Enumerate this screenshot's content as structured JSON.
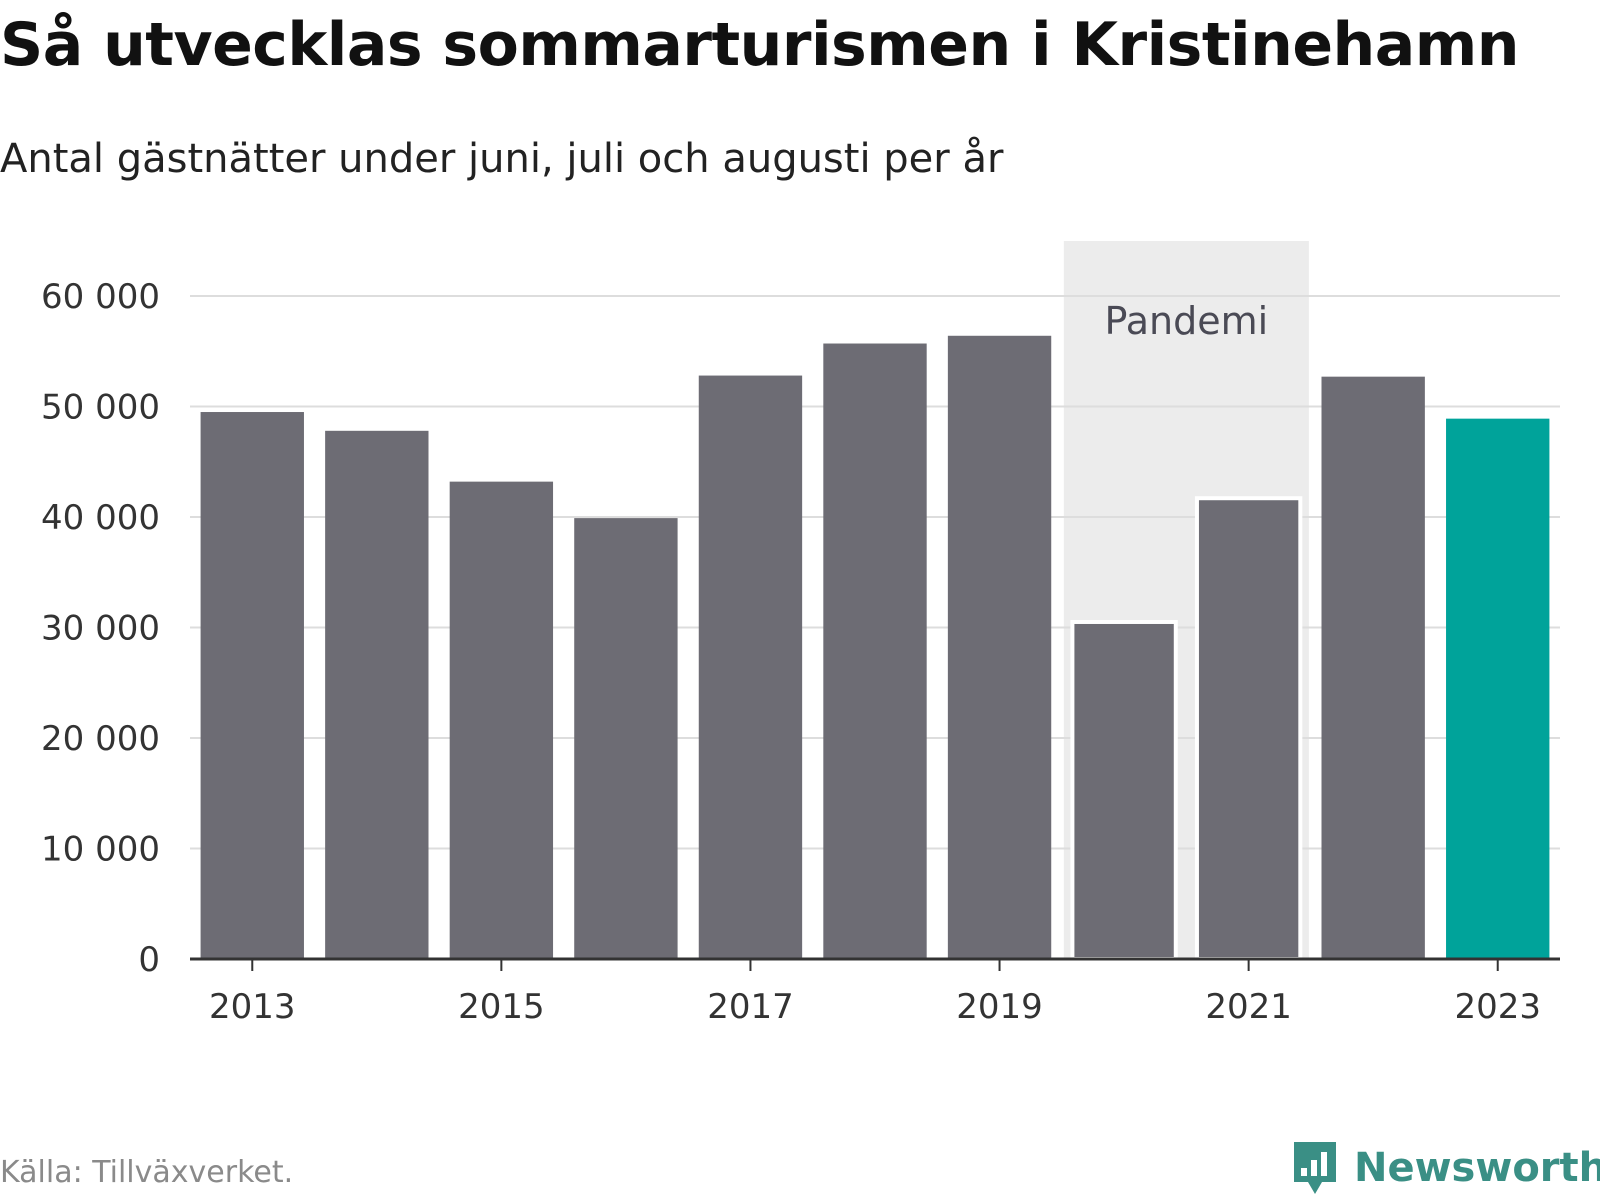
{
  "title": "Så utvecklas sommarturismen i Kristinehamn",
  "subtitle": "Antal gästnätter under juni, juli och augusti per år",
  "source": "Källa: Tillväxverket.",
  "brand": {
    "name": "Newsworthy",
    "icon": "bar-chart-speech-bubble-icon"
  },
  "colors": {
    "bar": "#6d6c74",
    "highlight": "#00a39a",
    "band": "#ececec",
    "grid": "#dddddd",
    "axis": "#333333",
    "brand": "#3a8f85"
  },
  "chart_data": {
    "type": "bar",
    "categories": [
      "2013",
      "2014",
      "2015",
      "2016",
      "2017",
      "2018",
      "2019",
      "2020",
      "2021",
      "2022",
      "2023"
    ],
    "values": [
      49500,
      47800,
      43200,
      39900,
      52800,
      55700,
      56400,
      30500,
      41700,
      52700,
      48900
    ],
    "highlight_category": "2023",
    "xtick_labels": [
      "2013",
      "2015",
      "2017",
      "2019",
      "2021",
      "2023"
    ],
    "yticks": [
      0,
      10000,
      20000,
      30000,
      40000,
      50000,
      60000
    ],
    "ytick_labels": [
      "0",
      "10 000",
      "20 000",
      "30 000",
      "40 000",
      "50 000",
      "60 000"
    ],
    "ylim": [
      0,
      65000
    ],
    "grid": true,
    "annotation": {
      "label": "Pandemi",
      "from": "2020",
      "to": "2021"
    }
  }
}
